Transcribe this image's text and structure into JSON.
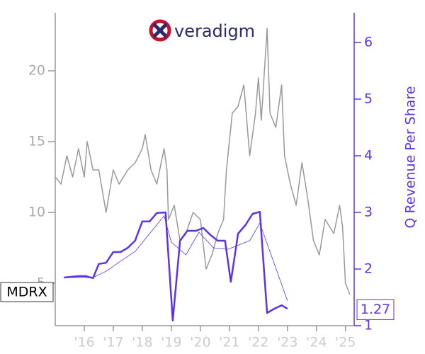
{
  "chart_data": {
    "type": "line",
    "ticker": "MDRX",
    "logo_text": "veradigm",
    "y2label": "Q Revenue Per Share",
    "last_value": 1.27,
    "xlim": [
      2015.0,
      2025.3
    ],
    "xticks": [
      {
        "value": 2016,
        "label": "'16"
      },
      {
        "value": 2017,
        "label": "'17"
      },
      {
        "value": 2018,
        "label": "'18"
      },
      {
        "value": 2019,
        "label": "'19"
      },
      {
        "value": 2020,
        "label": "'20"
      },
      {
        "value": 2021,
        "label": "'21"
      },
      {
        "value": 2022,
        "label": "'22"
      },
      {
        "value": 2023,
        "label": "'23"
      },
      {
        "value": 2024,
        "label": "'24"
      },
      {
        "value": 2025,
        "label": "'25"
      }
    ],
    "ylim": [
      2,
      24.1
    ],
    "yticks": [
      5,
      10,
      15,
      20
    ],
    "y2lim": [
      1,
      6.525
    ],
    "y2ticks": [
      1,
      2,
      3,
      4,
      5,
      6
    ],
    "series": [
      {
        "color": "#999999",
        "width": 1.5,
        "x": [
          2015.0,
          2015.2,
          2015.4,
          2015.6,
          2015.8,
          2016.0,
          2016.1,
          2016.3,
          2016.5,
          2016.75,
          2017.0,
          2017.2,
          2017.5,
          2017.75,
          2018.0,
          2018.1,
          2018.3,
          2018.5,
          2018.75,
          2018.85,
          2018.9,
          2019.1,
          2019.3,
          2019.5,
          2019.75,
          2020.0,
          2020.2,
          2020.4,
          2020.6,
          2020.8,
          2020.9,
          2021.1,
          2021.3,
          2021.5,
          2021.7,
          2021.9,
          2022.0,
          2022.1,
          2022.3,
          2022.4,
          2022.6,
          2022.8,
          2022.9,
          2023.1,
          2023.3,
          2023.5,
          2023.7,
          2023.9,
          2024.1,
          2024.3,
          2024.6,
          2024.8,
          2024.9,
          2025.0,
          2025.15
        ],
        "values": [
          12.5,
          12,
          14,
          12.5,
          14.5,
          12.5,
          15,
          13,
          13,
          10,
          13,
          12,
          13,
          13.5,
          14.5,
          15.5,
          13,
          12,
          14.5,
          13,
          9.5,
          10.5,
          8,
          8.5,
          10,
          9.5,
          6,
          7,
          8.5,
          9.5,
          13,
          17,
          17.5,
          19,
          14,
          17,
          19.5,
          16.5,
          23,
          17,
          16,
          19,
          14,
          12,
          10.5,
          13.5,
          11,
          8,
          7,
          9.5,
          8.5,
          10.5,
          9,
          5,
          4.2
        ]
      },
      {
        "color": "#5b34e8",
        "width": 2.5,
        "axis": "y2",
        "x": [
          2015.3,
          2015.8,
          2016.05,
          2016.3,
          2016.5,
          2016.75,
          2017.0,
          2017.25,
          2017.5,
          2017.75,
          2018.0,
          2018.25,
          2018.5,
          2018.8,
          2019.05,
          2019.3,
          2019.55,
          2019.85,
          2020.1,
          2020.35,
          2020.6,
          2020.85,
          2021.05,
          2021.3,
          2021.55,
          2021.8,
          2022.05,
          2022.3,
          2022.55,
          2022.8,
          2023.0
        ],
        "values": [
          1.85,
          1.875,
          1.875,
          1.84,
          2.09,
          2.11,
          2.3,
          2.3,
          2.375,
          2.5,
          2.84,
          2.84,
          2.99,
          3.0,
          1.09,
          2.5,
          2.675,
          2.675,
          2.725,
          2.6,
          2.5,
          2.5,
          1.775,
          2.625,
          2.775,
          2.975,
          3.01,
          1.225,
          1.3,
          1.36,
          1.3
        ]
      },
      {
        "color": "#5b34e8",
        "width": 0.8,
        "axis": "y2",
        "x": [
          2015.3,
          2016.3,
          2016.75,
          2017.25,
          2017.75,
          2018.25,
          2018.75,
          2019.0,
          2019.5,
          2019.95,
          2020.45,
          2020.95,
          2021.7,
          2022.05,
          2023.0
        ],
        "values": [
          1.85,
          1.85,
          1.96,
          2.14,
          2.31,
          2.625,
          2.94,
          2.475,
          2.25,
          2.65,
          2.375,
          2.35,
          2.5,
          2.81,
          1.44
        ]
      }
    ]
  }
}
